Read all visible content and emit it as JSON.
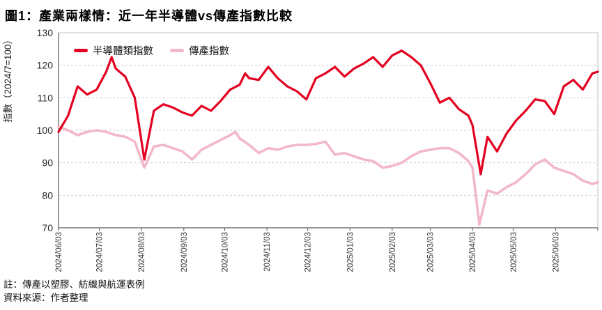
{
  "figure": {
    "title": "圖1：產業兩樣情：近一年半導體vs傳產指數比較",
    "note": "註：傳產以塑膠、紡織與航運表例",
    "source": "資料來源：作者整理"
  },
  "chart_data": {
    "type": "line",
    "title": "圖1：產業兩樣情：近一年半導體vs傳產指數比較",
    "ylabel": "指數（2024/7=100）",
    "ylim": [
      70,
      130
    ],
    "yticks": [
      70,
      80,
      90,
      100,
      110,
      120,
      130
    ],
    "xtick_labels": [
      "2024/06/03",
      "2024/07/03",
      "2024/08/03",
      "2024/09/03",
      "2024/10/03",
      "2024/11/03",
      "2024/12/03",
      "2025/01/03",
      "2025/02/03",
      "2025/03/03",
      "2025/04/03",
      "2025/05/03",
      "2025/06/03"
    ],
    "x_start": "2024-06-03",
    "x_end": "2025-07-04",
    "grid": "horizontal dashed",
    "legend_position": "top-left inside",
    "series": [
      {
        "name": "半導體類指數",
        "color": "#e30020",
        "stroke_width": 3.2,
        "data": [
          [
            "2024-06-03",
            99.5
          ],
          [
            "2024-06-10",
            104.5
          ],
          [
            "2024-06-17",
            113.5
          ],
          [
            "2024-06-24",
            111
          ],
          [
            "2024-07-01",
            112.5
          ],
          [
            "2024-07-08",
            118
          ],
          [
            "2024-07-12",
            122.5
          ],
          [
            "2024-07-15",
            119
          ],
          [
            "2024-07-22",
            116.5
          ],
          [
            "2024-07-29",
            110
          ],
          [
            "2024-08-05",
            91
          ],
          [
            "2024-08-12",
            106
          ],
          [
            "2024-08-19",
            108
          ],
          [
            "2024-08-26",
            107
          ],
          [
            "2024-09-02",
            105.5
          ],
          [
            "2024-09-09",
            104.5
          ],
          [
            "2024-09-16",
            107.5
          ],
          [
            "2024-09-23",
            106
          ],
          [
            "2024-09-30",
            109
          ],
          [
            "2024-10-07",
            112.5
          ],
          [
            "2024-10-14",
            114
          ],
          [
            "2024-10-18",
            117.5
          ],
          [
            "2024-10-21",
            116
          ],
          [
            "2024-10-28",
            115.5
          ],
          [
            "2024-11-04",
            119.5
          ],
          [
            "2024-11-11",
            116
          ],
          [
            "2024-11-18",
            113.5
          ],
          [
            "2024-11-25",
            112
          ],
          [
            "2024-12-02",
            109.5
          ],
          [
            "2024-12-09",
            116
          ],
          [
            "2024-12-16",
            117.5
          ],
          [
            "2024-12-23",
            119.5
          ],
          [
            "2024-12-30",
            116.5
          ],
          [
            "2025-01-06",
            119
          ],
          [
            "2025-01-13",
            120.5
          ],
          [
            "2025-01-20",
            122.5
          ],
          [
            "2025-01-27",
            119.5
          ],
          [
            "2025-02-03",
            123
          ],
          [
            "2025-02-10",
            124.5
          ],
          [
            "2025-02-17",
            122.5
          ],
          [
            "2025-02-24",
            120
          ],
          [
            "2025-03-03",
            114.5
          ],
          [
            "2025-03-10",
            108.5
          ],
          [
            "2025-03-17",
            110
          ],
          [
            "2025-03-24",
            106.5
          ],
          [
            "2025-03-31",
            104.5
          ],
          [
            "2025-04-03",
            101.5
          ],
          [
            "2025-04-09",
            86.5
          ],
          [
            "2025-04-14",
            98
          ],
          [
            "2025-04-21",
            93.5
          ],
          [
            "2025-04-28",
            99
          ],
          [
            "2025-05-05",
            103
          ],
          [
            "2025-05-12",
            106
          ],
          [
            "2025-05-19",
            109.5
          ],
          [
            "2025-05-26",
            109
          ],
          [
            "2025-06-02",
            105
          ],
          [
            "2025-06-09",
            113.5
          ],
          [
            "2025-06-16",
            115.5
          ],
          [
            "2025-06-23",
            112.5
          ],
          [
            "2025-06-30",
            117.5
          ],
          [
            "2025-07-04",
            118
          ]
        ]
      },
      {
        "name": "傳產指數",
        "color": "#f2b8c8",
        "stroke_width": 3.6,
        "data": [
          [
            "2024-06-03",
            101
          ],
          [
            "2024-06-10",
            100
          ],
          [
            "2024-06-17",
            98.5
          ],
          [
            "2024-06-24",
            99.5
          ],
          [
            "2024-07-01",
            100
          ],
          [
            "2024-07-08",
            99.5
          ],
          [
            "2024-07-15",
            98.5
          ],
          [
            "2024-07-22",
            98
          ],
          [
            "2024-07-29",
            96.5
          ],
          [
            "2024-08-05",
            88.5
          ],
          [
            "2024-08-12",
            95
          ],
          [
            "2024-08-19",
            95.5
          ],
          [
            "2024-08-26",
            94.5
          ],
          [
            "2024-09-02",
            93.5
          ],
          [
            "2024-09-09",
            91
          ],
          [
            "2024-09-16",
            94
          ],
          [
            "2024-09-23",
            95.5
          ],
          [
            "2024-09-30",
            97
          ],
          [
            "2024-10-07",
            98.5
          ],
          [
            "2024-10-11",
            99.5
          ],
          [
            "2024-10-14",
            97.5
          ],
          [
            "2024-10-21",
            95.5
          ],
          [
            "2024-10-28",
            93
          ],
          [
            "2024-11-04",
            94.5
          ],
          [
            "2024-11-11",
            94
          ],
          [
            "2024-11-18",
            95
          ],
          [
            "2024-11-25",
            95.5
          ],
          [
            "2024-12-02",
            95.5
          ],
          [
            "2024-12-09",
            95.8
          ],
          [
            "2024-12-16",
            96.5
          ],
          [
            "2024-12-23",
            92.5
          ],
          [
            "2024-12-30",
            93
          ],
          [
            "2025-01-06",
            92
          ],
          [
            "2025-01-13",
            91
          ],
          [
            "2025-01-20",
            90.5
          ],
          [
            "2025-01-27",
            88.5
          ],
          [
            "2025-02-03",
            89
          ],
          [
            "2025-02-10",
            90
          ],
          [
            "2025-02-17",
            92
          ],
          [
            "2025-02-24",
            93.5
          ],
          [
            "2025-03-03",
            94
          ],
          [
            "2025-03-10",
            94.5
          ],
          [
            "2025-03-17",
            94.5
          ],
          [
            "2025-03-24",
            93
          ],
          [
            "2025-03-31",
            90.5
          ],
          [
            "2025-04-03",
            88.5
          ],
          [
            "2025-04-08",
            71
          ],
          [
            "2025-04-14",
            81.5
          ],
          [
            "2025-04-21",
            80.5
          ],
          [
            "2025-04-28",
            82.5
          ],
          [
            "2025-05-05",
            84
          ],
          [
            "2025-05-12",
            86.5
          ],
          [
            "2025-05-19",
            89.5
          ],
          [
            "2025-05-26",
            91
          ],
          [
            "2025-06-02",
            88.5
          ],
          [
            "2025-06-09",
            87.5
          ],
          [
            "2025-06-16",
            86.5
          ],
          [
            "2025-06-23",
            84.5
          ],
          [
            "2025-06-30",
            83.5
          ],
          [
            "2025-07-04",
            84
          ]
        ]
      }
    ]
  }
}
